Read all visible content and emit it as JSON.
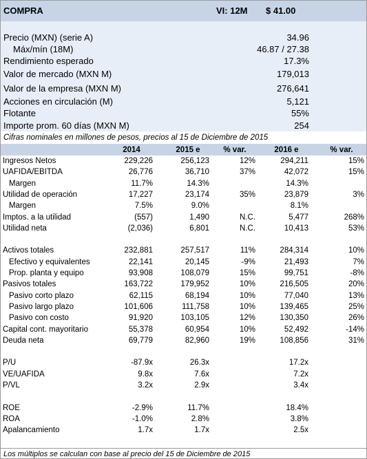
{
  "header": {
    "recommendation": "COMPRA",
    "target_label": "VI: 12M",
    "target_price": "$ 41.00"
  },
  "summary": [
    {
      "label": "Precio (MXN) (serie A)",
      "value": "34.96"
    },
    {
      "label": "Máx/mín (18M)",
      "value": "46.87 / 27.38",
      "indent": true
    },
    {
      "label": "Rendimiento esperado",
      "value": "17.3%"
    },
    {
      "label": "Valor de mercado (MXN M)",
      "value": "179,013"
    },
    {
      "label": "Valor de la empresa (MXN M)",
      "value": "276,641"
    },
    {
      "label": "Acciones en circulación (M)",
      "value": "5,121"
    },
    {
      "label": "Flotante",
      "value": "55%"
    },
    {
      "label": "Importe prom. 60 días (MXN M)",
      "value": "254"
    }
  ],
  "note": "Cifras nominales en millones de pesos, precios al 15 de Diciembre de 2015",
  "table": {
    "columns": [
      null,
      "2014",
      "2015 e",
      "% var.",
      "2016 e",
      "% var."
    ],
    "groups": [
      [
        {
          "label": "Ingresos Netos",
          "values": [
            "229,226",
            "256,123",
            "12%",
            "294,211",
            "15%"
          ]
        },
        {
          "label": "UAFIDA/EBITDA",
          "values": [
            "26,776",
            "36,710",
            "37%",
            "42,072",
            "15%"
          ]
        },
        {
          "label": "Margen",
          "indent": true,
          "values": [
            "11.7%",
            "14.3%",
            null,
            "14.3%",
            null
          ]
        },
        {
          "label": "Utilidad de operación",
          "values": [
            "17,227",
            "23,174",
            "35%",
            "23,879",
            "3%"
          ]
        },
        {
          "label": "Margen",
          "indent": true,
          "values": [
            "7.5%",
            "9.0%",
            null,
            "8.1%",
            null
          ]
        },
        {
          "label": "Imptos. a la utilidad",
          "values": [
            "(557)",
            "1,490",
            "N.C.",
            "5,477",
            "268%"
          ]
        },
        {
          "label": "Utilidad neta",
          "values": [
            "(2,036)",
            "6,801",
            "N.C.",
            "10,413",
            "53%"
          ]
        }
      ],
      [
        {
          "label": "Activos totales",
          "values": [
            "232,881",
            "257,517",
            "11%",
            "284,314",
            "10%"
          ]
        },
        {
          "label": "Efectivo y equivalentes",
          "indent": true,
          "values": [
            "22,141",
            "20,145",
            "-9%",
            "21,493",
            "7%"
          ]
        },
        {
          "label": "Prop. planta y equipo",
          "indent": true,
          "values": [
            "93,908",
            "108,079",
            "15%",
            "99,751",
            "-8%"
          ]
        },
        {
          "label": "Pasivos totales",
          "values": [
            "163,722",
            "179,952",
            "10%",
            "216,505",
            "20%"
          ]
        },
        {
          "label": "Pasivo corto plazo",
          "indent": true,
          "values": [
            "62,115",
            "68,194",
            "10%",
            "77,040",
            "13%"
          ]
        },
        {
          "label": "Pasivo largo plazo",
          "indent": true,
          "values": [
            "101,606",
            "111,758",
            "10%",
            "139,465",
            "25%"
          ]
        },
        {
          "label": "Pasivo con costo",
          "indent": true,
          "values": [
            "91,920",
            "103,105",
            "12%",
            "130,350",
            "26%"
          ]
        },
        {
          "label": "Capital cont. mayoritario",
          "values": [
            "55,378",
            "60,954",
            "10%",
            "52,492",
            "-14%"
          ]
        },
        {
          "label": "Deuda neta",
          "values": [
            "69,779",
            "82,960",
            "19%",
            "108,856",
            "31%"
          ]
        }
      ],
      [
        {
          "label": "P/U",
          "values": [
            "-87.9x",
            "26.3x",
            null,
            "17.2x",
            null
          ]
        },
        {
          "label": "VE/UAFIDA",
          "values": [
            "9.8x",
            "7.6x",
            null,
            "7.2x",
            null
          ]
        },
        {
          "label": "P/VL",
          "values": [
            "3.2x",
            "2.9x",
            null,
            "3.4x",
            null
          ]
        }
      ],
      [
        {
          "label": "ROE",
          "values": [
            "-2.9%",
            "11.7%",
            null,
            "18.4%",
            null
          ]
        },
        {
          "label": "ROA",
          "values": [
            "-1.0%",
            "2.8%",
            null,
            "3.8%",
            null
          ]
        },
        {
          "label": "Apalancamiento",
          "values": [
            "1.7x",
            "1.7x",
            null,
            "2.5x",
            null
          ]
        }
      ]
    ]
  },
  "footnote": "Los múltiplos se calculan con base al precio del 15 de Diciembre de 2015"
}
